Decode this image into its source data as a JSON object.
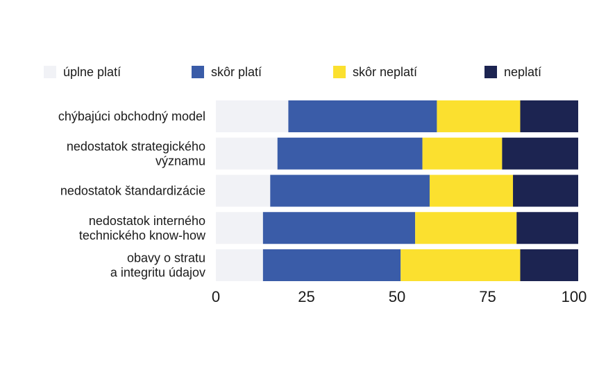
{
  "chart_data": {
    "type": "bar",
    "orientation": "horizontal",
    "stacked": true,
    "title": "",
    "xlabel": "",
    "ylabel": "",
    "xlim": [
      0,
      100
    ],
    "xticks": [
      0,
      25,
      50,
      75,
      100
    ],
    "grid": false,
    "legend_position": "top",
    "categories": [
      "chýbajúci obchodný model",
      "nedostatok strategického\nvýznamu",
      "nedostatok štandardizácie",
      "nedostatok interného\ntechnického know-how",
      "obavy o stratu\na integritu údajov"
    ],
    "series": [
      {
        "name": "úplne platí",
        "color": "#f1f2f6",
        "values": [
          20,
          17,
          15,
          13,
          13
        ]
      },
      {
        "name": "skôr platí",
        "color": "#3a5ca8",
        "values": [
          41,
          40,
          44,
          42,
          38
        ]
      },
      {
        "name": "skôr neplatí",
        "color": "#fbe02f",
        "values": [
          23,
          22,
          23,
          28,
          33
        ]
      },
      {
        "name": "neplatí",
        "color": "#1c2451",
        "values": [
          16,
          21,
          18,
          17,
          16
        ]
      }
    ]
  }
}
